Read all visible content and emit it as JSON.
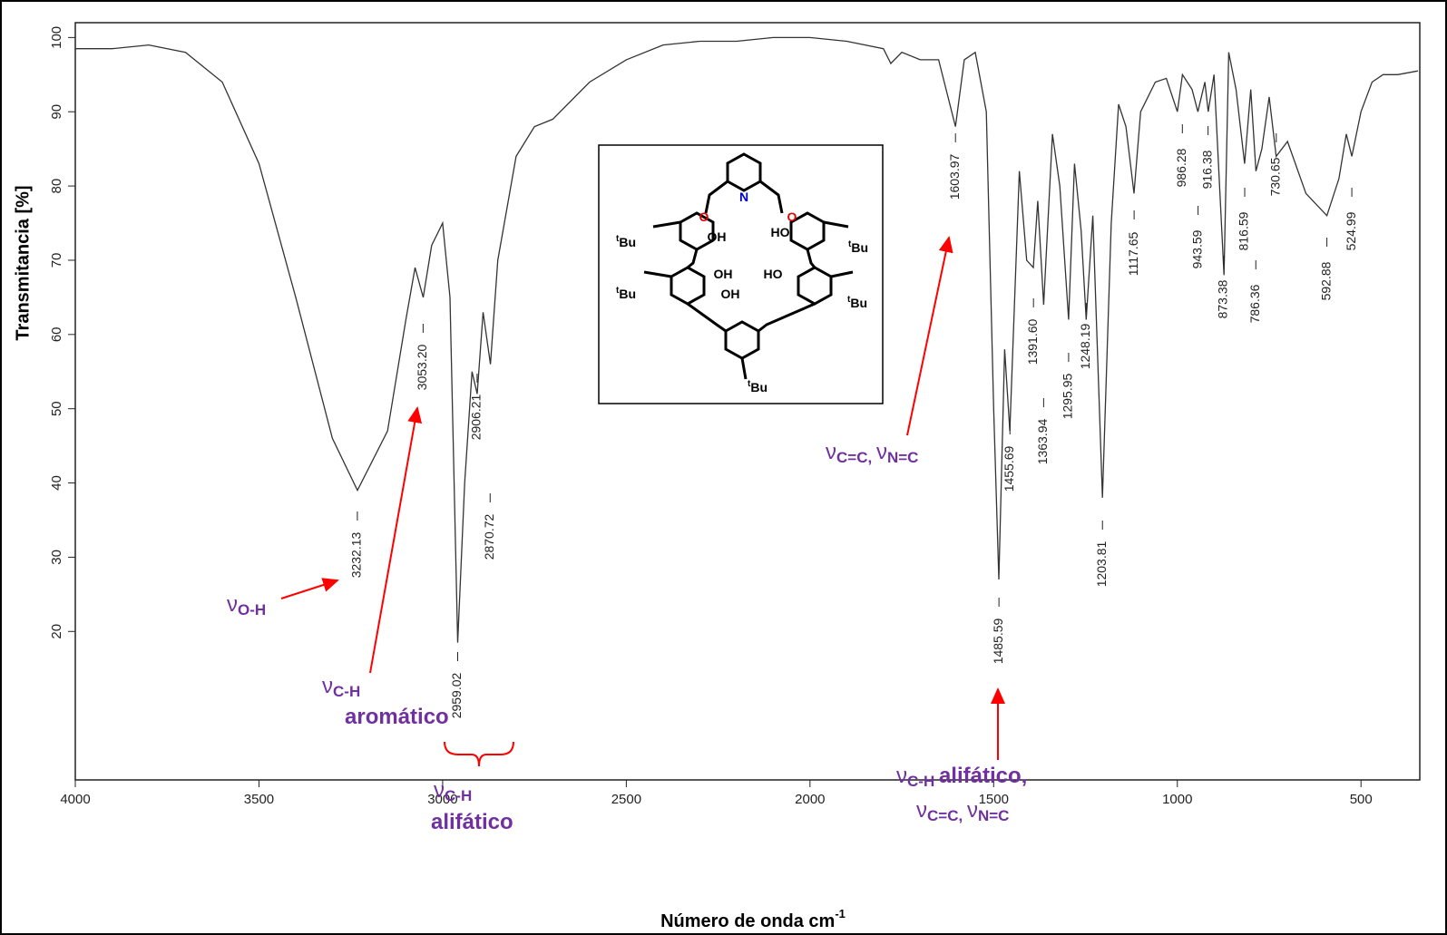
{
  "chart_data": {
    "type": "line",
    "x_label": "Número de onda cm",
    "x_label_sup": "-1",
    "y_label": "Transmitancia [%]",
    "xlim": [
      4000,
      340
    ],
    "ylim": [
      0,
      102
    ],
    "xticks": [
      4000,
      3500,
      3000,
      2500,
      2000,
      1500,
      1000,
      500
    ],
    "yticks": [
      20,
      30,
      40,
      50,
      60,
      70,
      80,
      90,
      100
    ],
    "x": [
      4000,
      3900,
      3800,
      3700,
      3600,
      3500,
      3400,
      3300,
      3232,
      3150,
      3100,
      3075,
      3053,
      3030,
      3000,
      2980,
      2959,
      2940,
      2920,
      2906,
      2890,
      2870,
      2850,
      2800,
      2750,
      2700,
      2600,
      2500,
      2400,
      2300,
      2200,
      2100,
      2000,
      1900,
      1800,
      1780,
      1750,
      1700,
      1650,
      1604,
      1580,
      1550,
      1520,
      1500,
      1486,
      1470,
      1456,
      1430,
      1410,
      1392,
      1380,
      1364,
      1340,
      1320,
      1296,
      1280,
      1262,
      1248,
      1230,
      1204,
      1180,
      1160,
      1140,
      1118,
      1100,
      1060,
      1030,
      1000,
      986,
      960,
      944,
      925,
      916,
      900,
      873,
      860,
      840,
      817,
      800,
      786,
      770,
      750,
      731,
      700,
      650,
      593,
      560,
      540,
      525,
      500,
      470,
      440,
      400,
      345
    ],
    "series": [
      {
        "color": "#333333",
        "values": [
          98.5,
          98.5,
          99,
          98,
          94,
          83,
          65,
          46,
          39,
          47,
          62,
          69,
          65,
          72,
          75,
          65,
          18.5,
          40,
          55,
          52,
          63,
          56,
          70,
          84,
          88,
          89,
          94,
          97,
          99,
          99.5,
          99.5,
          100,
          100,
          99.5,
          98.5,
          96.5,
          98,
          97,
          97,
          88,
          97,
          98,
          90,
          50,
          27,
          58,
          47,
          82,
          70,
          69,
          78,
          64,
          87,
          80,
          62,
          83,
          74,
          62,
          76,
          38,
          75,
          91,
          88,
          79,
          90,
          94,
          94.5,
          90,
          95,
          93,
          90,
          94,
          90,
          95,
          68,
          98,
          93,
          83,
          93,
          82,
          85,
          92,
          84,
          86,
          79,
          76,
          81,
          87,
          84,
          90,
          94,
          95,
          95,
          95.5
        ]
      }
    ],
    "peaks": [
      {
        "value": 3232.13,
        "label": "3232.13"
      },
      {
        "value": 3053.2,
        "label": "3053.20"
      },
      {
        "value": 2959.02,
        "label": "2959.02"
      },
      {
        "value": 2906.21,
        "label": "2906.21"
      },
      {
        "value": 2870.72,
        "label": "2870.72"
      },
      {
        "value": 1603.97,
        "label": "1603.97"
      },
      {
        "value": 1485.59,
        "label": "1485.59"
      },
      {
        "value": 1455.69,
        "label": "1455.69"
      },
      {
        "value": 1391.6,
        "label": "1391.60"
      },
      {
        "value": 1363.94,
        "label": "1363.94"
      },
      {
        "value": 1295.95,
        "label": "1295.95"
      },
      {
        "value": 1248.19,
        "label": "1248.19"
      },
      {
        "value": 1203.81,
        "label": "1203.81"
      },
      {
        "value": 1117.65,
        "label": "1117.65"
      },
      {
        "value": 986.28,
        "label": "986.28"
      },
      {
        "value": 943.59,
        "label": "943.59"
      },
      {
        "value": 916.38,
        "label": "916.38"
      },
      {
        "value": 873.38,
        "label": "873.38"
      },
      {
        "value": 816.59,
        "label": "816.59"
      },
      {
        "value": 786.36,
        "label": "786.36"
      },
      {
        "value": 730.65,
        "label": "730.65"
      },
      {
        "value": 592.88,
        "label": "592.88"
      },
      {
        "value": 524.99,
        "label": "524.99"
      }
    ],
    "annotations": [
      {
        "lines": [
          [
            {
              "t": "ν"
            },
            {
              "s": "O-H"
            }
          ]
        ]
      },
      {
        "lines": [
          [
            {
              "t": "ν"
            },
            {
              "s": "C-H"
            }
          ],
          [
            {
              "t": "aromático"
            }
          ]
        ]
      },
      {
        "lines": [
          [
            {
              "t": "ν"
            },
            {
              "s": "C-H"
            }
          ],
          [
            {
              "t": "alifático"
            }
          ]
        ]
      },
      {
        "lines": [
          [
            {
              "t": "ν"
            },
            {
              "s": "C=C, "
            },
            {
              "t": "ν"
            },
            {
              "s": "N=C"
            }
          ]
        ]
      },
      {
        "lines": [
          [
            {
              "t": "ν"
            },
            {
              "s": "C-H "
            },
            {
              "t": "alifático,"
            }
          ],
          [
            {
              "t": "ν"
            },
            {
              "s": "C=C, "
            },
            {
              "t": "ν"
            },
            {
              "s": "N=C"
            }
          ]
        ]
      }
    ],
    "structure_labels": [
      {
        "text": "O"
      },
      {
        "text": "N"
      },
      {
        "text": "O"
      },
      {
        "text": "OH"
      },
      {
        "text": "HO"
      },
      {
        "text": "OH"
      },
      {
        "text": "HO"
      },
      {
        "text": "OH"
      },
      {
        "sup": "t",
        "text": "Bu"
      },
      {
        "sup": "t",
        "text": "Bu"
      },
      {
        "sup": "t",
        "text": "Bu"
      },
      {
        "sup": "t",
        "text": "Bu"
      },
      {
        "sup": "t",
        "text": "Bu"
      }
    ]
  }
}
